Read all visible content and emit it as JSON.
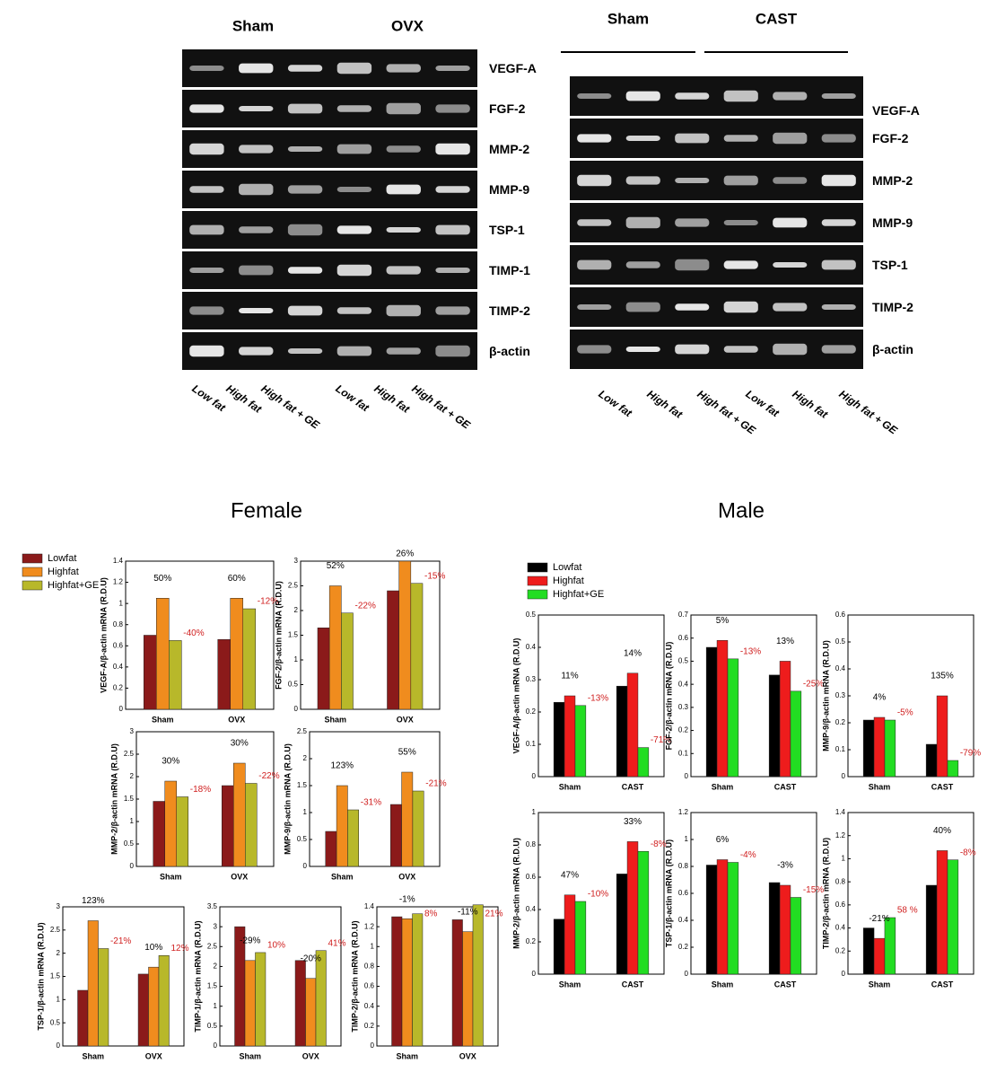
{
  "gels": [
    {
      "groups": [
        "Sham",
        "OVX"
      ],
      "rows": [
        "VEGF-A",
        "FGF-2",
        "MMP-2",
        "MMP-9",
        "TSP-1",
        "TIMP-1",
        "TIMP-2",
        "β-actin"
      ],
      "lanes": [
        "Low fat",
        "High fat",
        "High fat + GE",
        "Low fat",
        "High fat",
        "High fat + GE"
      ]
    },
    {
      "groups": [
        "Sham",
        "CAST"
      ],
      "rows": [
        "VEGF-A",
        "FGF-2",
        "MMP-2",
        "MMP-9",
        "TSP-1",
        "TIMP-2",
        "β-actin"
      ],
      "lanes": [
        "Low fat",
        "High fat",
        "High fat + GE",
        "Low fat",
        "High fat",
        "High fat + GE"
      ]
    }
  ],
  "section_titles": [
    "Female",
    "Male"
  ],
  "chart_data": [
    {
      "type": "bar",
      "y_label": "VEGF-A/β-actin mRNA (R.D.U)",
      "categories": [
        "Sham",
        "OVX"
      ],
      "ylim": [
        0,
        1.4
      ],
      "yticks": [
        0,
        0.2,
        0.4,
        0.6,
        0.8,
        1,
        1.2,
        1.4
      ],
      "legend": true,
      "series": [
        {
          "name": "Lowfat",
          "color": "#8b1a1a",
          "values": [
            0.7,
            0.66
          ]
        },
        {
          "name": "Highfat",
          "color": "#f08c1e",
          "values": [
            1.05,
            1.05
          ]
        },
        {
          "name": "Highfat+GE",
          "color": "#b8b82a",
          "values": [
            0.65,
            0.95
          ]
        }
      ],
      "annotations": [
        {
          "text": "50%",
          "series": 1,
          "category": 0,
          "color": "#000000"
        },
        {
          "text": "60%",
          "series": 1,
          "category": 1,
          "color": "#000000"
        },
        {
          "text": "-40%",
          "series": 2,
          "category": 0,
          "color": "#d02020"
        },
        {
          "text": "-12%",
          "series": 2,
          "category": 1,
          "color": "#d02020"
        }
      ]
    },
    {
      "type": "bar",
      "y_label": "FGF-2/β-actin mRNA (R.D.U)",
      "categories": [
        "Sham",
        "OVX"
      ],
      "ylim": [
        0,
        3
      ],
      "yticks": [
        0,
        0.5,
        1,
        1.5,
        2,
        2.5,
        3
      ],
      "series": [
        {
          "color": "#8b1a1a",
          "values": [
            1.65,
            2.4
          ]
        },
        {
          "color": "#f08c1e",
          "values": [
            2.5,
            3.0
          ]
        },
        {
          "color": "#b8b82a",
          "values": [
            1.95,
            2.55
          ]
        }
      ],
      "annotations": [
        {
          "text": "52%",
          "series": 1,
          "category": 0,
          "color": "#000000"
        },
        {
          "text": "26%",
          "series": 1,
          "category": 1,
          "color": "#000000"
        },
        {
          "text": "-22%",
          "series": 2,
          "category": 0,
          "color": "#d02020"
        },
        {
          "text": "-15%",
          "series": 2,
          "category": 1,
          "color": "#d02020"
        }
      ]
    },
    {
      "type": "bar",
      "y_label": "MMP-2/β-actin mRNA (R.D.U)",
      "categories": [
        "Sham",
        "OVX"
      ],
      "ylim": [
        0,
        3
      ],
      "yticks": [
        0,
        0.5,
        1,
        1.5,
        2,
        2.5,
        3
      ],
      "series": [
        {
          "color": "#8b1a1a",
          "values": [
            1.45,
            1.8
          ]
        },
        {
          "color": "#f08c1e",
          "values": [
            1.9,
            2.3
          ]
        },
        {
          "color": "#b8b82a",
          "values": [
            1.55,
            1.85
          ]
        }
      ],
      "annotations": [
        {
          "text": "30%",
          "series": 1,
          "category": 0,
          "color": "#000000"
        },
        {
          "text": "30%",
          "series": 1,
          "category": 1,
          "color": "#000000"
        },
        {
          "text": "-18%",
          "series": 2,
          "category": 0,
          "color": "#d02020"
        },
        {
          "text": "-22%",
          "series": 2,
          "category": 1,
          "color": "#d02020"
        }
      ]
    },
    {
      "type": "bar",
      "y_label": "MMP-9/β-actin mRNA (R.D.U)",
      "categories": [
        "Sham",
        "OVX"
      ],
      "ylim": [
        0,
        2.5
      ],
      "yticks": [
        0,
        0.5,
        1,
        1.5,
        2,
        2.5
      ],
      "series": [
        {
          "color": "#8b1a1a",
          "values": [
            0.65,
            1.15
          ]
        },
        {
          "color": "#f08c1e",
          "values": [
            1.5,
            1.75
          ]
        },
        {
          "color": "#b8b82a",
          "values": [
            1.05,
            1.4
          ]
        }
      ],
      "annotations": [
        {
          "text": "123%",
          "series": 1,
          "category": 0,
          "color": "#000000"
        },
        {
          "text": "55%",
          "series": 1,
          "category": 1,
          "color": "#000000"
        },
        {
          "text": "-31%",
          "series": 2,
          "category": 0,
          "color": "#d02020"
        },
        {
          "text": "-21%",
          "series": 2,
          "category": 1,
          "color": "#d02020"
        }
      ]
    },
    {
      "type": "bar",
      "y_label": "TSP-1/β-actin mRNA (R.D.U)",
      "categories": [
        "Sham",
        "OVX"
      ],
      "ylim": [
        0,
        3
      ],
      "yticks": [
        0,
        0.5,
        1,
        1.5,
        2,
        2.5,
        3
      ],
      "series": [
        {
          "color": "#8b1a1a",
          "values": [
            1.2,
            1.55
          ]
        },
        {
          "color": "#f08c1e",
          "values": [
            2.7,
            1.7
          ]
        },
        {
          "color": "#b8b82a",
          "values": [
            2.1,
            1.95
          ]
        }
      ],
      "annotations": [
        {
          "text": "123%",
          "series": 1,
          "category": 0,
          "color": "#000000"
        },
        {
          "text": "10%",
          "series": 1,
          "category": 1,
          "color": "#000000"
        },
        {
          "text": "-21%",
          "series": 2,
          "category": 0,
          "color": "#d02020"
        },
        {
          "text": "12%",
          "series": 2,
          "category": 1,
          "color": "#d02020"
        }
      ]
    },
    {
      "type": "bar",
      "y_label": "TIMP-1/β-actin mRNA (R.D.U)",
      "categories": [
        "Sham",
        "OVX"
      ],
      "ylim": [
        0,
        3.5
      ],
      "yticks": [
        0,
        0.5,
        1,
        1.5,
        2,
        2.5,
        3,
        3.5
      ],
      "series": [
        {
          "color": "#8b1a1a",
          "values": [
            3.0,
            2.15
          ]
        },
        {
          "color": "#f08c1e",
          "values": [
            2.15,
            1.7
          ]
        },
        {
          "color": "#b8b82a",
          "values": [
            2.35,
            2.4
          ]
        }
      ],
      "annotations": [
        {
          "text": "-29%",
          "series": 1,
          "category": 0,
          "color": "#000000"
        },
        {
          "text": "-20%",
          "series": 1,
          "category": 1,
          "color": "#000000"
        },
        {
          "text": "10%",
          "series": 2,
          "category": 0,
          "color": "#d02020"
        },
        {
          "text": "41%",
          "series": 2,
          "category": 1,
          "color": "#d02020"
        }
      ]
    },
    {
      "type": "bar",
      "y_label": "TIMP-2/β-actin mRNA (R.D.U)",
      "categories": [
        "Sham",
        "OVX"
      ],
      "ylim": [
        0,
        1.4
      ],
      "yticks": [
        0,
        0.2,
        0.4,
        0.6,
        0.8,
        1,
        1.2,
        1.4
      ],
      "series": [
        {
          "color": "#8b1a1a",
          "values": [
            1.3,
            1.27
          ]
        },
        {
          "color": "#f08c1e",
          "values": [
            1.28,
            1.15
          ]
        },
        {
          "color": "#b8b82a",
          "values": [
            1.33,
            1.42
          ]
        }
      ],
      "annotations": [
        {
          "text": "-1%",
          "series": 1,
          "category": 0,
          "color": "#000000"
        },
        {
          "text": "-11%",
          "series": 1,
          "category": 1,
          "color": "#000000"
        },
        {
          "text": "8%",
          "series": 2,
          "category": 0,
          "color": "#d02020"
        },
        {
          "text": "21%",
          "series": 2,
          "category": 1,
          "color": "#d02020"
        }
      ]
    },
    {
      "type": "bar",
      "y_label": "VEGF-A/β-actin mRNA (R.D.U)",
      "categories": [
        "Sham",
        "CAST"
      ],
      "ylim": [
        0,
        0.5
      ],
      "yticks": [
        0,
        0.1,
        0.2,
        0.3,
        0.4,
        0.5
      ],
      "legend": true,
      "series": [
        {
          "name": "Lowfat",
          "color": "#000000",
          "values": [
            0.23,
            0.28
          ]
        },
        {
          "name": "Highfat",
          "color": "#ee1c1c",
          "values": [
            0.25,
            0.32
          ]
        },
        {
          "name": "Highfat+GE",
          "color": "#22dd22",
          "values": [
            0.22,
            0.09
          ]
        }
      ],
      "annotations": [
        {
          "text": "11%",
          "series": 1,
          "category": 0,
          "color": "#000000"
        },
        {
          "text": "14%",
          "series": 1,
          "category": 1,
          "color": "#000000"
        },
        {
          "text": "-13%",
          "series": 2,
          "category": 0,
          "color": "#d02020"
        },
        {
          "text": "-71%",
          "series": 2,
          "category": 1,
          "color": "#d02020"
        }
      ]
    },
    {
      "type": "bar",
      "y_label": "FGF-2/β-actin mRNA (R.D.U)",
      "categories": [
        "Sham",
        "CAST"
      ],
      "ylim": [
        0,
        0.7
      ],
      "yticks": [
        0,
        0.1,
        0.2,
        0.3,
        0.4,
        0.5,
        0.6,
        0.7
      ],
      "series": [
        {
          "color": "#000000",
          "values": [
            0.56,
            0.44
          ]
        },
        {
          "color": "#ee1c1c",
          "values": [
            0.59,
            0.5
          ]
        },
        {
          "color": "#22dd22",
          "values": [
            0.51,
            0.37
          ]
        }
      ],
      "annotations": [
        {
          "text": "5%",
          "series": 1,
          "category": 0,
          "color": "#000000"
        },
        {
          "text": "13%",
          "series": 1,
          "category": 1,
          "color": "#000000"
        },
        {
          "text": "-13%",
          "series": 2,
          "category": 0,
          "color": "#d02020"
        },
        {
          "text": "-25%",
          "series": 2,
          "category": 1,
          "color": "#d02020"
        }
      ]
    },
    {
      "type": "bar",
      "y_label": "MMP-9/β-actin mRNA (R.D.U)",
      "categories": [
        "Sham",
        "CAST"
      ],
      "ylim": [
        0,
        0.6
      ],
      "yticks": [
        0,
        0.1,
        0.2,
        0.3,
        0.4,
        0.5,
        0.6
      ],
      "series": [
        {
          "color": "#000000",
          "values": [
            0.21,
            0.12
          ]
        },
        {
          "color": "#ee1c1c",
          "values": [
            0.22,
            0.3
          ]
        },
        {
          "color": "#22dd22",
          "values": [
            0.21,
            0.06
          ]
        }
      ],
      "annotations": [
        {
          "text": "4%",
          "series": 1,
          "category": 0,
          "color": "#000000"
        },
        {
          "text": "135%",
          "series": 1,
          "category": 1,
          "color": "#000000"
        },
        {
          "text": "-5%",
          "series": 2,
          "category": 0,
          "color": "#d02020"
        },
        {
          "text": "-79%",
          "series": 2,
          "category": 1,
          "color": "#d02020"
        }
      ]
    },
    {
      "type": "bar",
      "y_label": "MMP-2/β-actin mRNA (R.D.U)",
      "categories": [
        "Sham",
        "CAST"
      ],
      "ylim": [
        0,
        1
      ],
      "yticks": [
        0,
        0.2,
        0.4,
        0.6,
        0.8,
        1
      ],
      "series": [
        {
          "color": "#000000",
          "values": [
            0.34,
            0.62
          ]
        },
        {
          "color": "#ee1c1c",
          "values": [
            0.49,
            0.82
          ]
        },
        {
          "color": "#22dd22",
          "values": [
            0.45,
            0.76
          ]
        }
      ],
      "annotations": [
        {
          "text": "47%",
          "series": 1,
          "category": 0,
          "color": "#000000"
        },
        {
          "text": "33%",
          "series": 1,
          "category": 1,
          "color": "#000000"
        },
        {
          "text": "-10%",
          "series": 2,
          "category": 0,
          "color": "#d02020"
        },
        {
          "text": "-8%",
          "series": 2,
          "category": 1,
          "color": "#d02020"
        }
      ]
    },
    {
      "type": "bar",
      "y_label": "TSP-1/β-actin mRNA (R.D.U)",
      "categories": [
        "Sham",
        "CAST"
      ],
      "ylim": [
        0,
        1.2
      ],
      "yticks": [
        0,
        0.2,
        0.4,
        0.6,
        0.8,
        1,
        1.2
      ],
      "series": [
        {
          "color": "#000000",
          "values": [
            0.81,
            0.68
          ]
        },
        {
          "color": "#ee1c1c",
          "values": [
            0.85,
            0.66
          ]
        },
        {
          "color": "#22dd22",
          "values": [
            0.83,
            0.57
          ]
        }
      ],
      "annotations": [
        {
          "text": "6%",
          "series": 1,
          "category": 0,
          "color": "#000000"
        },
        {
          "text": "-3%",
          "series": 1,
          "category": 1,
          "color": "#000000"
        },
        {
          "text": "-4%",
          "series": 2,
          "category": 0,
          "color": "#d02020"
        },
        {
          "text": "-15%",
          "series": 2,
          "category": 1,
          "color": "#d02020"
        }
      ]
    },
    {
      "type": "bar",
      "y_label": "TIMP-2/β-actin mRNA (R.D.U)",
      "categories": [
        "Sham",
        "CAST"
      ],
      "ylim": [
        0,
        1.4
      ],
      "yticks": [
        0,
        0.2,
        0.4,
        0.6,
        0.8,
        1,
        1.2,
        1.4
      ],
      "series": [
        {
          "color": "#000000",
          "values": [
            0.4,
            0.77
          ]
        },
        {
          "color": "#ee1c1c",
          "values": [
            0.31,
            1.07
          ]
        },
        {
          "color": "#22dd22",
          "values": [
            0.49,
            0.99
          ]
        }
      ],
      "annotations": [
        {
          "text": "-21%",
          "series": 1,
          "category": 0,
          "color": "#000000"
        },
        {
          "text": "40%",
          "series": 1,
          "category": 1,
          "color": "#000000"
        },
        {
          "text": "58 %",
          "series": 2,
          "category": 0,
          "color": "#d02020"
        },
        {
          "text": "-8%",
          "series": 2,
          "category": 1,
          "color": "#d02020"
        }
      ]
    }
  ]
}
